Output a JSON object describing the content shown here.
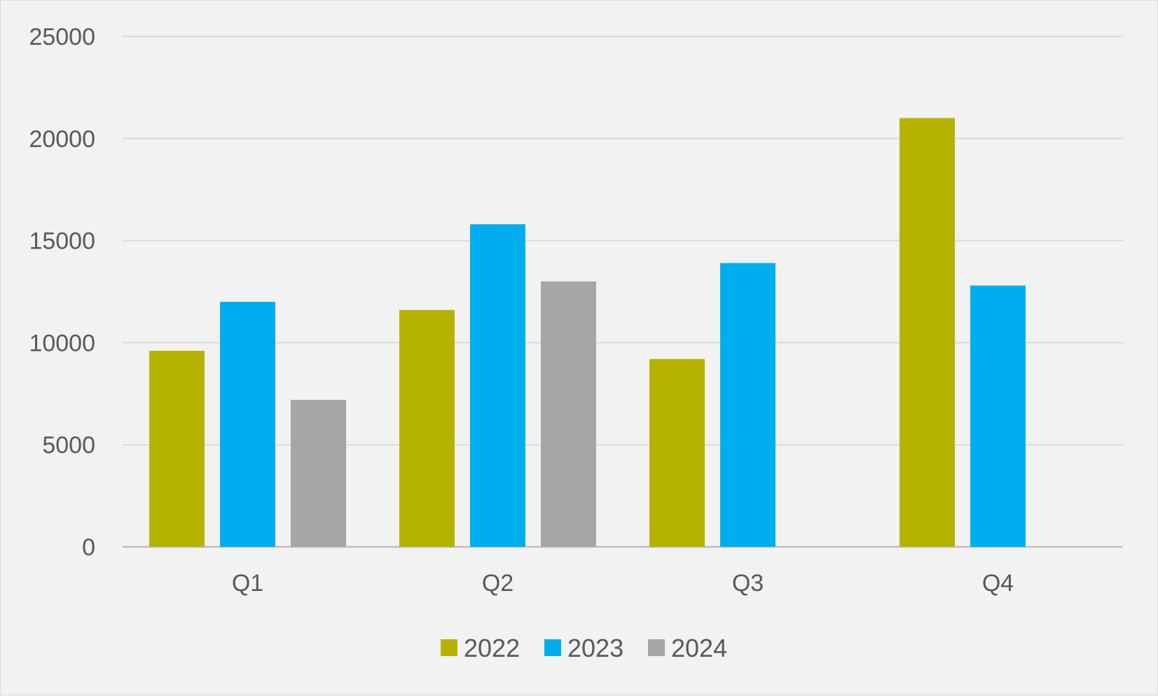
{
  "chart_data": {
    "type": "bar",
    "title": "",
    "xlabel": "",
    "ylabel": "",
    "categories": [
      "Q1",
      "Q2",
      "Q3",
      "Q4"
    ],
    "series": [
      {
        "name": "2022",
        "color": "#b5b300",
        "values": [
          9600,
          11600,
          9200,
          21000
        ]
      },
      {
        "name": "2023",
        "color": "#00aeef",
        "values": [
          12000,
          15800,
          13900,
          12800
        ]
      },
      {
        "name": "2024",
        "color": "#a6a6a6",
        "values": [
          7200,
          13000,
          null,
          null
        ]
      }
    ],
    "ylim": [
      0,
      25000
    ],
    "yticks": [
      0,
      5000,
      10000,
      15000,
      20000,
      25000
    ],
    "ytick_labels": [
      "0",
      "5000",
      "10000",
      "15000",
      "20000",
      "25000"
    ],
    "grid": true,
    "legend_position": "bottom-center"
  }
}
